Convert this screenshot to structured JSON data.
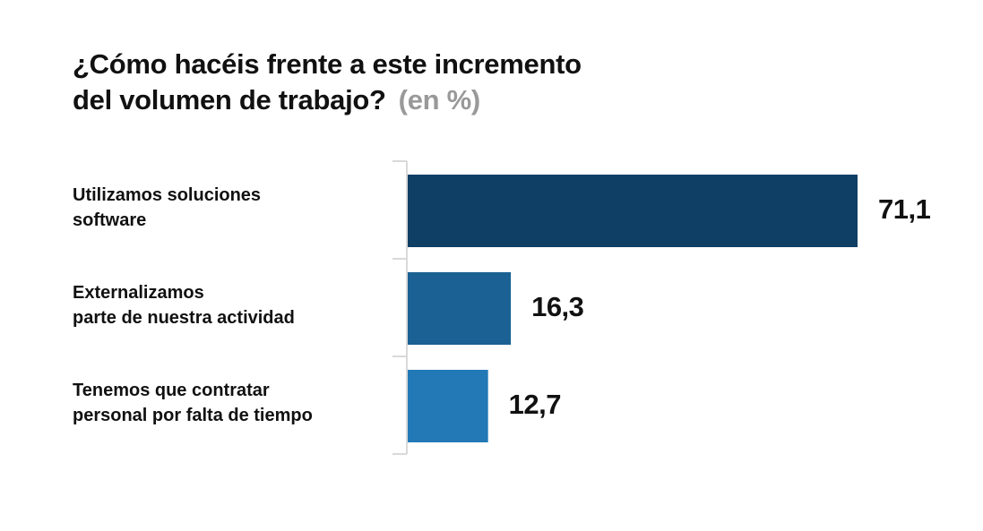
{
  "chart_data": {
    "type": "bar",
    "orientation": "horizontal",
    "title": "¿Cómo hacéis frente a este incremento del volumen de trabajo?",
    "title_lines": [
      "¿Cómo hacéis frente a este incremento",
      "del volumen de trabajo?"
    ],
    "unit_label": "(en %)",
    "categories": [
      [
        "Utilizamos soluciones",
        "software"
      ],
      [
        "Externalizamos",
        "parte de nuestra actividad"
      ],
      [
        "Tenemos que contratar",
        "personal por falta de tiempo"
      ]
    ],
    "values": [
      71.1,
      16.3,
      12.7
    ],
    "value_labels": [
      "71,1",
      "16,3",
      "12,7"
    ],
    "colors": [
      "#0f3f65",
      "#1b6193",
      "#2279b6"
    ],
    "xlim": [
      0,
      71.1
    ],
    "grid": false,
    "legend": "none"
  },
  "colors": {
    "axis": "#d9d9d9",
    "title": "#111111",
    "unit": "#999999"
  }
}
